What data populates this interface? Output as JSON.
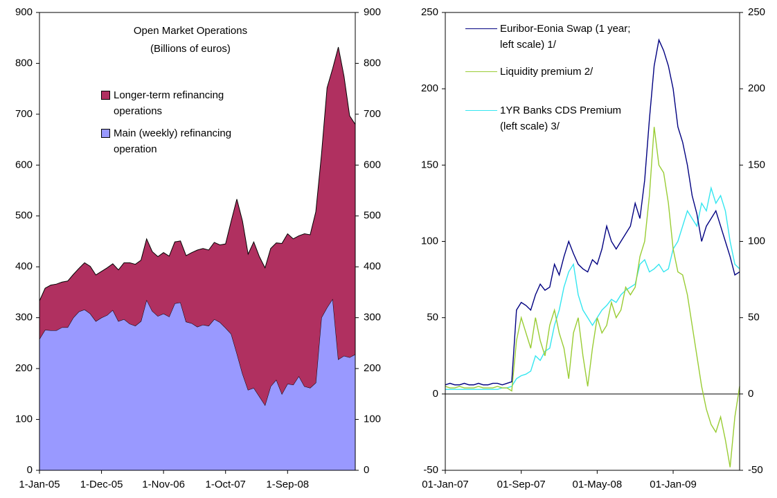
{
  "chart_data": [
    {
      "type": "area",
      "stacked": true,
      "title": "Open Market Operations",
      "subtitle": "(Billions of euros)",
      "categories": [
        "1-Jan-05",
        null,
        null,
        null,
        null,
        null,
        null,
        null,
        null,
        null,
        null,
        "1-Dec-05",
        null,
        null,
        null,
        null,
        null,
        null,
        null,
        null,
        null,
        null,
        "1-Nov-06",
        null,
        null,
        null,
        null,
        null,
        null,
        null,
        null,
        null,
        null,
        "1-Oct-07",
        null,
        null,
        null,
        null,
        null,
        null,
        null,
        null,
        null,
        null,
        "1-Sep-08",
        null,
        null,
        null,
        null,
        null,
        null,
        null,
        null,
        null,
        null,
        null,
        null
      ],
      "series": [
        {
          "name": "Main (weekly) refinancing operation",
          "color": "#9999ff",
          "values": [
            258,
            276,
            275,
            275,
            281,
            281,
            300,
            312,
            316,
            308,
            293,
            300,
            305,
            315,
            293,
            297,
            288,
            284,
            293,
            335,
            313,
            303,
            308,
            302,
            328,
            330,
            292,
            289,
            282,
            286,
            284,
            297,
            291,
            280,
            268,
            230,
            190,
            158,
            162,
            145,
            128,
            165,
            178,
            150,
            170,
            168,
            185,
            165,
            162,
            172,
            300,
            320,
            337,
            218,
            225,
            222,
            228
          ]
        },
        {
          "name": "Longer-term refinancing operations",
          "color": "#b03060",
          "values": [
            75,
            82,
            89,
            91,
            89,
            91,
            85,
            85,
            92,
            93,
            91,
            91,
            93,
            91,
            101,
            111,
            120,
            121,
            120,
            120,
            117,
            117,
            120,
            119,
            121,
            121,
            130,
            139,
            151,
            150,
            149,
            151,
            152,
            165,
            222,
            303,
            300,
            267,
            287,
            275,
            270,
            271,
            269,
            296,
            295,
            287,
            276,
            300,
            301,
            336,
            320,
            432,
            453,
            614,
            550,
            475,
            452
          ]
        }
      ],
      "ylim": [
        0,
        900
      ],
      "yticks": [
        0,
        100,
        200,
        300,
        400,
        500,
        600,
        700,
        800,
        900
      ],
      "y2lim": [
        0,
        900
      ],
      "y2ticks": [
        0,
        100,
        200,
        300,
        400,
        500,
        600,
        700,
        800,
        900
      ],
      "legend": "upper-left"
    },
    {
      "type": "line",
      "categories": [
        "01-Jan-07",
        null,
        null,
        null,
        null,
        null,
        null,
        null,
        null,
        null,
        null,
        null,
        null,
        null,
        null,
        null,
        "01-Sep-07",
        null,
        null,
        null,
        null,
        null,
        null,
        null,
        null,
        null,
        null,
        null,
        null,
        null,
        null,
        null,
        "01-May-08",
        null,
        null,
        null,
        null,
        null,
        null,
        null,
        null,
        null,
        null,
        null,
        null,
        null,
        null,
        null,
        "01-Jan-09",
        null,
        null,
        null,
        null,
        null,
        null,
        null,
        null,
        null,
        null,
        null,
        null,
        null,
        null
      ],
      "series": [
        {
          "name": "Euribor-Eonia Swap (1 year; left scale) 1/",
          "color": "#000080",
          "values": [
            6,
            7,
            6,
            6,
            7,
            6,
            6,
            7,
            6,
            6,
            7,
            7,
            6,
            7,
            8,
            55,
            60,
            58,
            55,
            65,
            72,
            68,
            70,
            85,
            78,
            90,
            100,
            92,
            85,
            82,
            80,
            88,
            85,
            95,
            110,
            100,
            95,
            100,
            105,
            110,
            125,
            115,
            140,
            180,
            215,
            232,
            225,
            215,
            200,
            175,
            165,
            150,
            130,
            118,
            100,
            110,
            115,
            120,
            110,
            100,
            90,
            78,
            80
          ]
        },
        {
          "name": "Liquidity premium 2/",
          "color": "#99cc33",
          "values": [
            5,
            4,
            4,
            5,
            4,
            4,
            4,
            5,
            4,
            4,
            4,
            5,
            4,
            4,
            2,
            35,
            50,
            40,
            30,
            50,
            35,
            25,
            45,
            55,
            40,
            30,
            10,
            40,
            50,
            25,
            5,
            30,
            50,
            40,
            45,
            60,
            50,
            55,
            70,
            65,
            70,
            90,
            100,
            130,
            175,
            150,
            145,
            125,
            95,
            80,
            78,
            65,
            45,
            25,
            5,
            -10,
            -20,
            -25,
            -15,
            -30,
            -48,
            -15,
            5
          ]
        },
        {
          "name": "1YR Banks CDS Premium (left scale) 3/",
          "color": "#33e6f0",
          "values": [
            3,
            3,
            3,
            3,
            3,
            3,
            3,
            3,
            3,
            3,
            3,
            3,
            4,
            4,
            5,
            10,
            12,
            13,
            15,
            25,
            22,
            28,
            30,
            45,
            55,
            70,
            80,
            85,
            65,
            55,
            50,
            45,
            50,
            55,
            58,
            62,
            60,
            65,
            68,
            70,
            72,
            85,
            88,
            80,
            82,
            85,
            80,
            82,
            95,
            100,
            110,
            120,
            115,
            110,
            125,
            120,
            135,
            125,
            130,
            120,
            100,
            85,
            82
          ]
        }
      ],
      "ylim": [
        -50,
        250
      ],
      "yticks": [
        -50,
        0,
        50,
        100,
        150,
        200,
        250
      ],
      "y2lim": [
        -50,
        250
      ],
      "y2ticks": [
        -50,
        0,
        50,
        100,
        150,
        200,
        250
      ],
      "legend": "upper-left"
    }
  ]
}
